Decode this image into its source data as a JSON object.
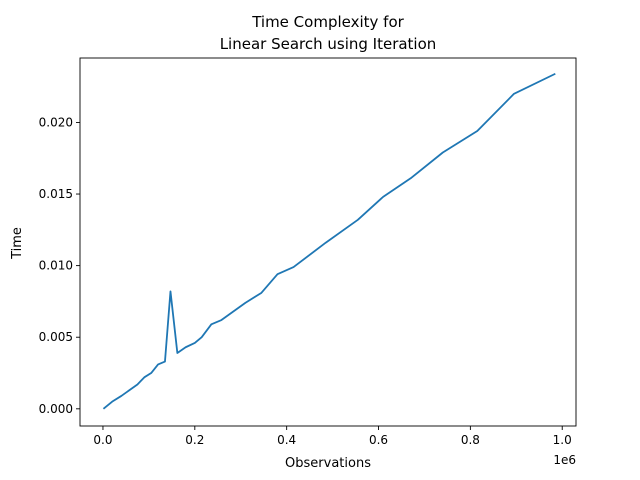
{
  "chart_data": {
    "type": "line",
    "title_line1": "Time Complexity for",
    "title_line2": "Linear Search using Iteration",
    "xlabel": "Observations",
    "ylabel": "Time",
    "x_offset_label": "1e6",
    "xlim": [
      -0.05,
      1.03
    ],
    "ylim": [
      -0.0012,
      0.0245
    ],
    "x_scale": 1000000,
    "x_ticks": [
      0,
      0.2,
      0.4,
      0.6,
      0.8,
      1.0
    ],
    "x_tick_labels": [
      "0.0",
      "0.2",
      "0.4",
      "0.6",
      "0.8",
      "1.0"
    ],
    "y_ticks": [
      0,
      0.005,
      0.01,
      0.015,
      0.02
    ],
    "y_tick_labels": [
      "0.000",
      "0.005",
      "0.010",
      "0.015",
      "0.020"
    ],
    "grid": false,
    "line_color": "#1f77b4",
    "series": [
      {
        "x": [
          1000,
          20000,
          40000,
          75000,
          90000,
          105000,
          120000,
          135000,
          147000,
          162000,
          180000,
          200000,
          215000,
          236000,
          258000,
          310000,
          345000,
          380000,
          415000,
          485000,
          555000,
          610000,
          670000,
          740000,
          815000,
          895000,
          985000
        ],
        "y": [
          0.0,
          0.0005,
          0.0009,
          0.0017,
          0.0022,
          0.0025,
          0.0031,
          0.0033,
          0.0082,
          0.0039,
          0.0043,
          0.0046,
          0.005,
          0.0059,
          0.0062,
          0.0074,
          0.0081,
          0.0094,
          0.0099,
          0.0116,
          0.0132,
          0.0148,
          0.0161,
          0.0179,
          0.0194,
          0.022,
          0.0234
        ]
      }
    ]
  }
}
